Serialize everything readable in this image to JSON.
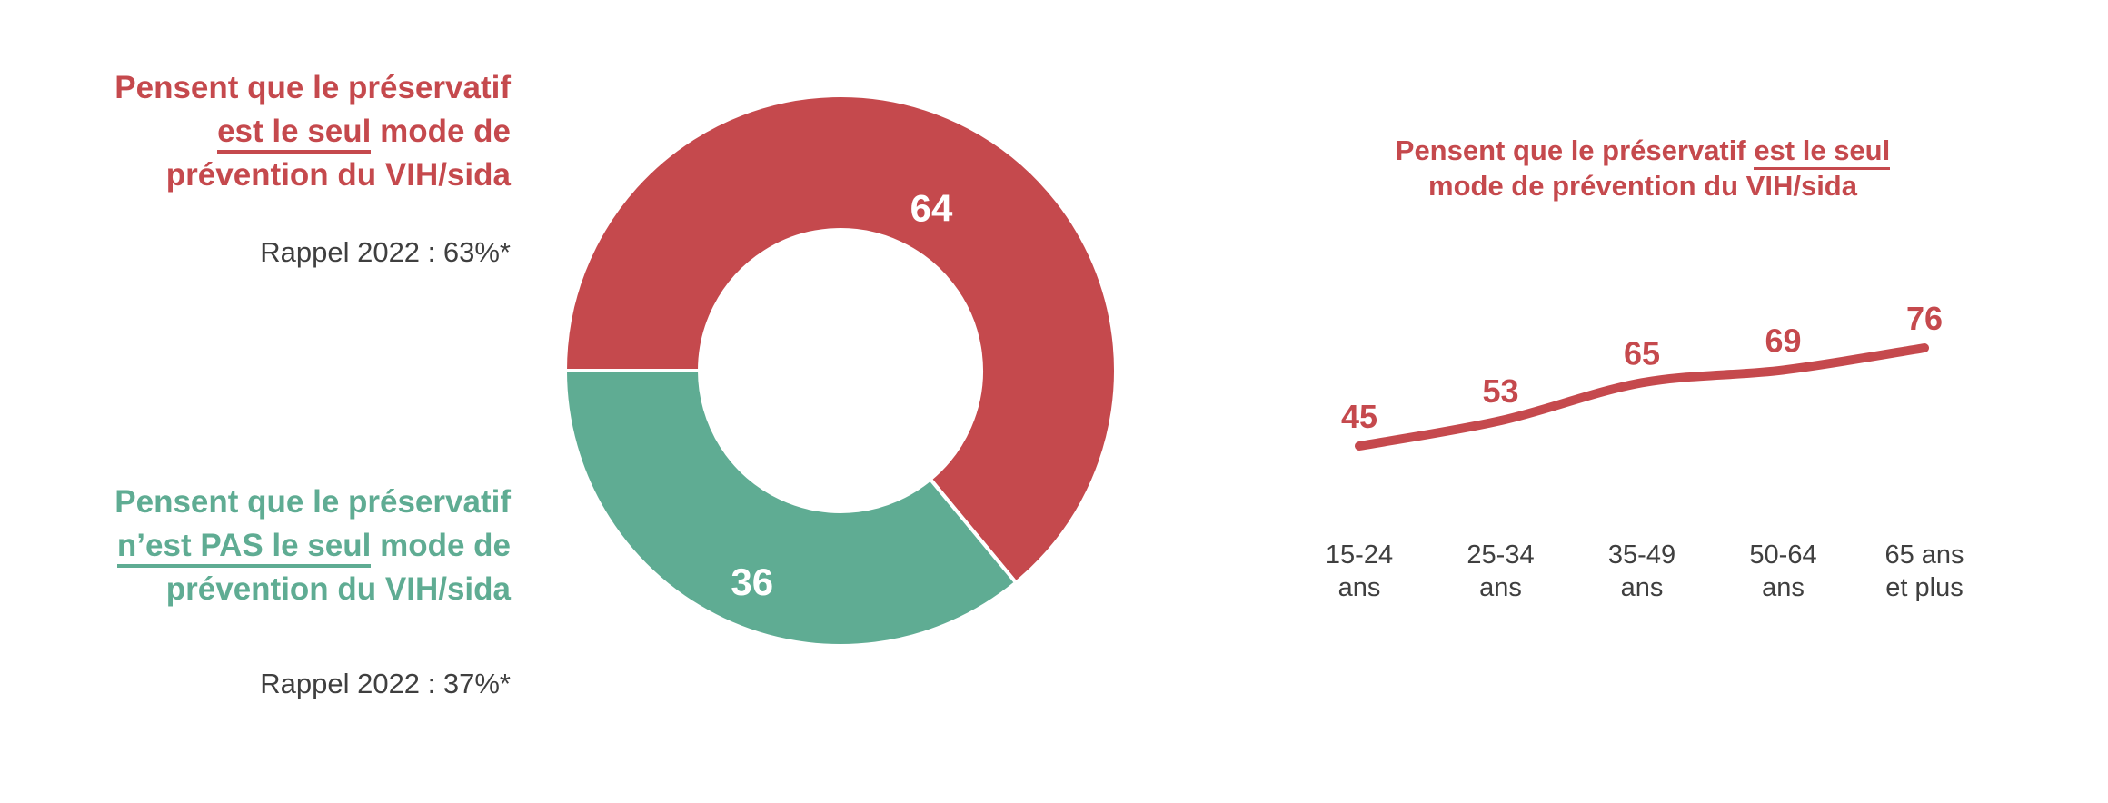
{
  "colors": {
    "red": "#C5494D",
    "green": "#5FAC93",
    "dark_text": "#3F3F3F",
    "slice_label": "#FFFFFF",
    "background": "#FFFFFF"
  },
  "left_panel": {
    "red_statement": {
      "line1": "Pensent que le préservatif",
      "underlined": "est le seul",
      "line2_rest": " mode de",
      "line3": "prévention du VIH/sida",
      "recall": "Rappel 2022 : 63%*"
    },
    "green_statement": {
      "line1": "Pensent que le préservatif",
      "underlined": "n’est PAS le seul",
      "line2_rest": " mode de",
      "line3": "prévention du VIH/sida",
      "recall": "Rappel 2022 : 37%*"
    }
  },
  "right_panel": {
    "title": {
      "line1_prefix": "Pensent que le préservatif ",
      "line1_underlined": "est le seul",
      "line2": "mode de prévention du VIH/sida"
    }
  },
  "chart_data": [
    {
      "type": "pie",
      "subtype": "donut",
      "labels": [
        "Pensent que le préservatif est le seul mode de prévention du VIH/sida",
        "Pensent que le préservatif n’est PAS le seul mode de prévention du VIH/sida"
      ],
      "values": [
        64,
        36
      ],
      "colors": [
        "#C5494D",
        "#5FAC93"
      ],
      "start_angle_deg": 270,
      "direction": "clockwise",
      "inner_radius_ratio": 0.51,
      "data_labels": [
        "64",
        "36"
      ],
      "data_label_color": "#FFFFFF",
      "legend_position": "left",
      "annotations": [
        "Rappel 2022 : 63%*",
        "Rappel 2022 : 37%*"
      ]
    },
    {
      "type": "line",
      "title": "Pensent que le préservatif est le seul mode de prévention du VIH/sida",
      "categories": [
        "15-24 ans",
        "25-34 ans",
        "35-49 ans",
        "50-64 ans",
        "65 ans et plus"
      ],
      "tick_lines": [
        [
          "15-24",
          "ans"
        ],
        [
          "25-34",
          "ans"
        ],
        [
          "35-49",
          "ans"
        ],
        [
          "50-64",
          "ans"
        ],
        [
          "65 ans",
          "et plus"
        ]
      ],
      "values": [
        45,
        53,
        65,
        69,
        76
      ],
      "series_name": "Pensent que le préservatif est le seul mode de prévention du VIH/sida",
      "line_color": "#C5494D",
      "smooth": true,
      "data_labels": [
        "45",
        "53",
        "65",
        "69",
        "76"
      ],
      "grid": false,
      "y_axis_visible": false,
      "approx_ylim": [
        40,
        90
      ]
    }
  ]
}
